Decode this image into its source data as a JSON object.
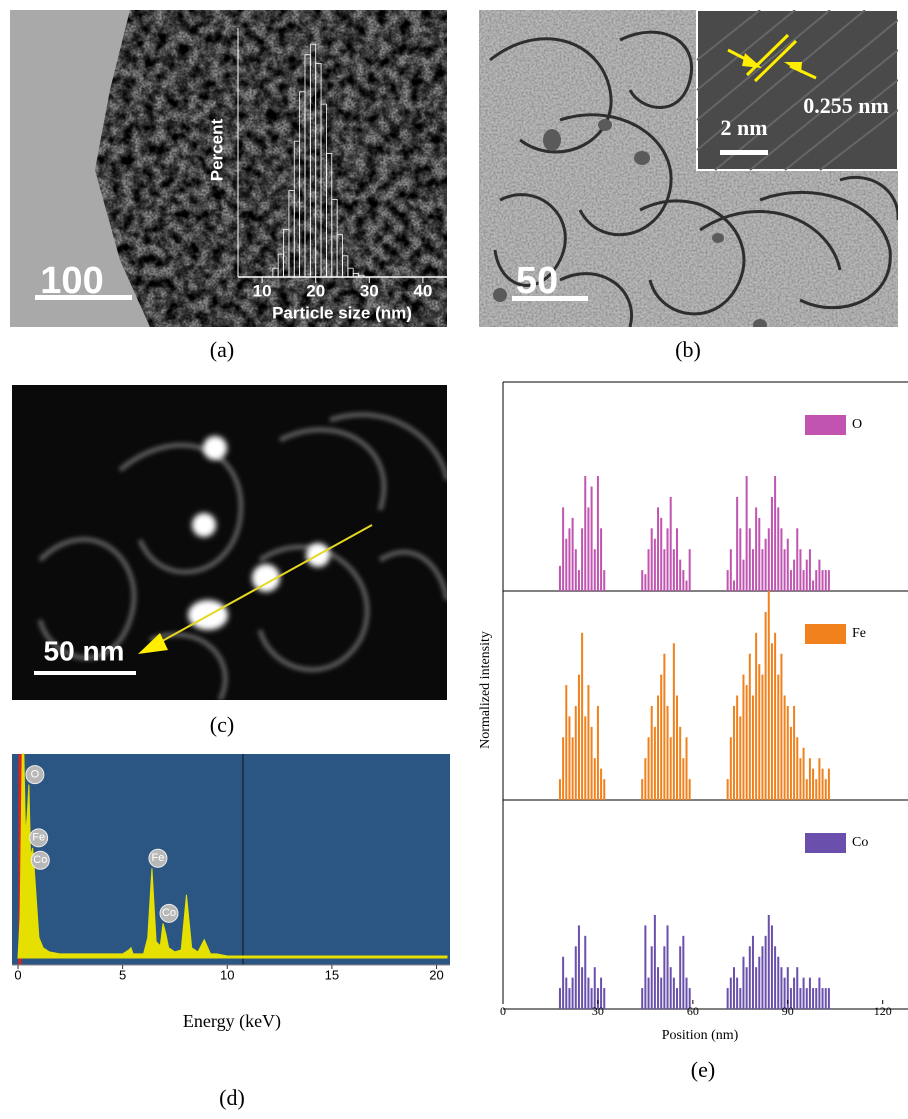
{
  "panels": [
    {
      "label": "(a)",
      "scale_bar": "100"
    },
    {
      "label": "(b)",
      "scale_bar": "50",
      "inset_scale_bar": "2 nm",
      "inset_spacing": "0.255 nm"
    },
    {
      "label": "(c)",
      "scale_bar": "50 nm"
    },
    {
      "label": "(d)"
    },
    {
      "label": "(e)"
    }
  ],
  "chart_data": [
    {
      "type": "histogram",
      "x_label": "Particle size (nm)",
      "y_label": "Percent",
      "bins": [
        12,
        13,
        14,
        15,
        16,
        17,
        18,
        19,
        20,
        21,
        22,
        23,
        24,
        25,
        26,
        27,
        28,
        29
      ],
      "values": [
        0.5,
        1.3,
        2.7,
        4.9,
        7.7,
        10.5,
        12.6,
        13.2,
        12.1,
        9.8,
        7,
        4.4,
        2.4,
        1.2,
        0.5,
        0.2,
        0.1
      ],
      "xlim": [
        5.5,
        44.5
      ],
      "xticks": [
        10,
        20,
        30,
        40
      ],
      "ylim": [
        0,
        14
      ],
      "color": "#ffffff"
    },
    {
      "type": "area",
      "x_label": "Energy (keV)",
      "x": [
        0,
        0.1,
        0.2,
        0.28,
        0.36,
        0.44,
        0.52,
        0.6,
        0.7,
        0.78,
        0.9,
        1.0,
        1.2,
        1.5,
        2,
        3,
        4,
        5,
        5.3,
        5.4,
        5.5,
        6,
        6.2,
        6.4,
        6.6,
        6.8,
        6.93,
        7.06,
        7.2,
        7.5,
        7.8,
        8.05,
        8.3,
        8.6,
        8.9,
        9.2,
        9.5,
        10,
        11,
        12,
        15,
        18,
        20.5
      ],
      "values": [
        0,
        20,
        100,
        100,
        60,
        70,
        85,
        50,
        54,
        43,
        25,
        10,
        5,
        3,
        2,
        2,
        2,
        2,
        4,
        5,
        2,
        2,
        10,
        44,
        8,
        6,
        17,
        12,
        5,
        3,
        4,
        31,
        5,
        3,
        9,
        2,
        2,
        1,
        1,
        1,
        1,
        1,
        1
      ],
      "annotations": [
        {
          "text": "O",
          "x": 0.52
        },
        {
          "text": "Fe",
          "x": 0.7
        },
        {
          "text": "Co",
          "x": 0.78
        },
        {
          "text": "Fe",
          "x": 6.4
        },
        {
          "text": "Co",
          "x": 6.93
        }
      ],
      "xlim": [
        0,
        20.5
      ],
      "xticks": [
        0,
        5,
        10,
        15,
        20
      ],
      "ylim": [
        0,
        100
      ],
      "color": "#e6e000"
    },
    {
      "type": "bar",
      "x_label": "Position (nm)",
      "y_label": "Normalized intensity",
      "x": [
        18,
        19,
        20,
        21,
        22,
        23,
        24,
        25,
        26,
        27,
        28,
        29,
        30,
        31,
        32,
        44,
        45,
        46,
        47,
        48,
        49,
        50,
        51,
        52,
        53,
        54,
        55,
        56,
        57,
        58,
        59,
        71,
        72,
        73,
        74,
        75,
        76,
        77,
        78,
        79,
        80,
        81,
        82,
        83,
        84,
        85,
        86,
        87,
        88,
        89,
        90,
        91,
        92,
        93,
        94,
        95,
        96,
        97,
        98,
        99,
        100,
        101,
        102,
        103
      ],
      "series": [
        {
          "name": "O",
          "color": "#c054b0",
          "values": [
            0.12,
            0.4,
            0.25,
            0.3,
            0.35,
            0.2,
            0.1,
            0.3,
            0.55,
            0.4,
            0.5,
            0.2,
            0.55,
            0.3,
            0.1,
            0.1,
            0.08,
            0.2,
            0.3,
            0.25,
            0.4,
            0.35,
            0.2,
            0.3,
            0.45,
            0.2,
            0.3,
            0.15,
            0.1,
            0.05,
            0.2,
            0.1,
            0.2,
            0.05,
            0.45,
            0.3,
            0.15,
            0.55,
            0.3,
            0.2,
            0.4,
            0.35,
            0.2,
            0.25,
            0.3,
            0.45,
            0.55,
            0.4,
            0.3,
            0.2,
            0.25,
            0.1,
            0.15,
            0.3,
            0.2,
            0.1,
            0.15,
            0.2,
            0.05,
            0.1,
            0.15,
            0.1,
            0.1,
            0.1
          ]
        },
        {
          "name": "Fe",
          "color": "#f0811c",
          "values": [
            0.1,
            0.3,
            0.55,
            0.4,
            0.3,
            0.45,
            0.6,
            0.8,
            0.4,
            0.55,
            0.35,
            0.2,
            0.45,
            0.15,
            0.1,
            0.1,
            0.2,
            0.3,
            0.45,
            0.35,
            0.5,
            0.6,
            0.7,
            0.45,
            0.3,
            0.75,
            0.5,
            0.35,
            0.2,
            0.3,
            0.1,
            0.1,
            0.3,
            0.45,
            0.5,
            0.4,
            0.6,
            0.55,
            0.7,
            0.5,
            0.8,
            0.65,
            0.6,
            0.9,
            1.0,
            0.75,
            0.8,
            0.6,
            0.7,
            0.5,
            0.45,
            0.35,
            0.45,
            0.3,
            0.2,
            0.25,
            0.1,
            0.2,
            0.15,
            0.1,
            0.2,
            0.15,
            0.1,
            0.15
          ]
        },
        {
          "name": "Co",
          "color": "#6a4fac",
          "values": [
            0.1,
            0.25,
            0.15,
            0.1,
            0.15,
            0.3,
            0.4,
            0.2,
            0.35,
            0.15,
            0.1,
            0.2,
            0.1,
            0.15,
            0.1,
            0.1,
            0.4,
            0.15,
            0.3,
            0.45,
            0.2,
            0.15,
            0.3,
            0.4,
            0.2,
            0.15,
            0.1,
            0.3,
            0.35,
            0.15,
            0.1,
            0.1,
            0.15,
            0.2,
            0.15,
            0.1,
            0.25,
            0.2,
            0.3,
            0.35,
            0.2,
            0.25,
            0.3,
            0.35,
            0.45,
            0.4,
            0.3,
            0.25,
            0.2,
            0.15,
            0.2,
            0.1,
            0.15,
            0.2,
            0.1,
            0.15,
            0.1,
            0.15,
            0.1,
            0.1,
            0.15,
            0.1,
            0.1,
            0.1
          ]
        }
      ],
      "xlim": [
        0,
        128
      ],
      "xticks": [
        0,
        30,
        60,
        90,
        120
      ],
      "ylim": [
        0,
        1
      ]
    }
  ]
}
